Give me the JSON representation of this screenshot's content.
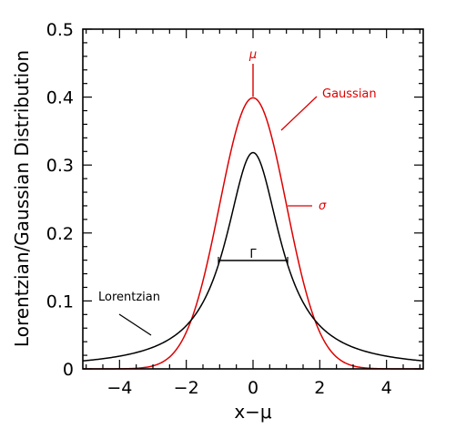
{
  "chart_data": {
    "type": "line",
    "title": "",
    "xlabel": "x−μ",
    "ylabel": "Lorentzian/Gaussian Distribution",
    "xlim": [
      -5.1,
      5.1
    ],
    "ylim": [
      0,
      0.5
    ],
    "x_ticks": [
      -4,
      -2,
      0,
      2,
      4
    ],
    "x_tick_labels": [
      "−4",
      "−2",
      "0",
      "2",
      "4"
    ],
    "y_ticks": [
      0,
      0.1,
      0.2,
      0.3,
      0.4,
      0.5
    ],
    "y_tick_labels": [
      "0",
      "0.1",
      "0.2",
      "0.3",
      "0.4",
      "0.5"
    ],
    "grid": false,
    "series": [
      {
        "name": "Gaussian",
        "color": "#dd0000",
        "x": [
          -5,
          -4.5,
          -4,
          -3.5,
          -3,
          -2.5,
          -2,
          -1.75,
          -1.5,
          -1.25,
          -1,
          -0.75,
          -0.5,
          -0.25,
          0,
          0.25,
          0.5,
          0.75,
          1,
          1.25,
          1.5,
          1.75,
          2,
          2.5,
          3,
          3.5,
          4,
          4.5,
          5
        ],
        "y": [
          1.5e-06,
          1.6e-05,
          0.000134,
          0.000873,
          0.00443,
          0.0175,
          0.054,
          0.0863,
          0.1295,
          0.1826,
          0.242,
          0.3011,
          0.3521,
          0.3867,
          0.3989,
          0.3867,
          0.3521,
          0.3011,
          0.242,
          0.1826,
          0.1295,
          0.0863,
          0.054,
          0.0175,
          0.00443,
          0.000873,
          0.000134,
          1.6e-05,
          1.5e-06
        ]
      },
      {
        "name": "Lorentzian",
        "color": "#000000",
        "x": [
          -5,
          -4.5,
          -4,
          -3.5,
          -3,
          -2.5,
          -2,
          -1.75,
          -1.5,
          -1.25,
          -1,
          -0.75,
          -0.5,
          -0.25,
          0,
          0.25,
          0.5,
          0.75,
          1,
          1.25,
          1.5,
          1.75,
          2,
          2.5,
          3,
          3.5,
          4,
          4.5,
          5
        ],
        "y": [
          0.0122,
          0.015,
          0.0187,
          0.024,
          0.0318,
          0.0437,
          0.0637,
          0.0784,
          0.0979,
          0.1234,
          0.1559,
          0.194,
          0.234,
          0.2839,
          0.3183,
          0.2839,
          0.234,
          0.194,
          0.1559,
          0.1234,
          0.0979,
          0.0784,
          0.0637,
          0.0437,
          0.0318,
          0.024,
          0.0187,
          0.015,
          0.0122
        ]
      }
    ],
    "annotations": {
      "mu": {
        "text": "μ",
        "color": "#dd0000"
      },
      "gaussian": {
        "text": "Gaussian",
        "color": "#dd0000"
      },
      "sigma": {
        "text": "σ",
        "color": "#dd0000"
      },
      "gamma": {
        "text": "Γ",
        "color": "#000000"
      },
      "lorentzian": {
        "text": "Lorentzian",
        "color": "#000000"
      }
    }
  }
}
